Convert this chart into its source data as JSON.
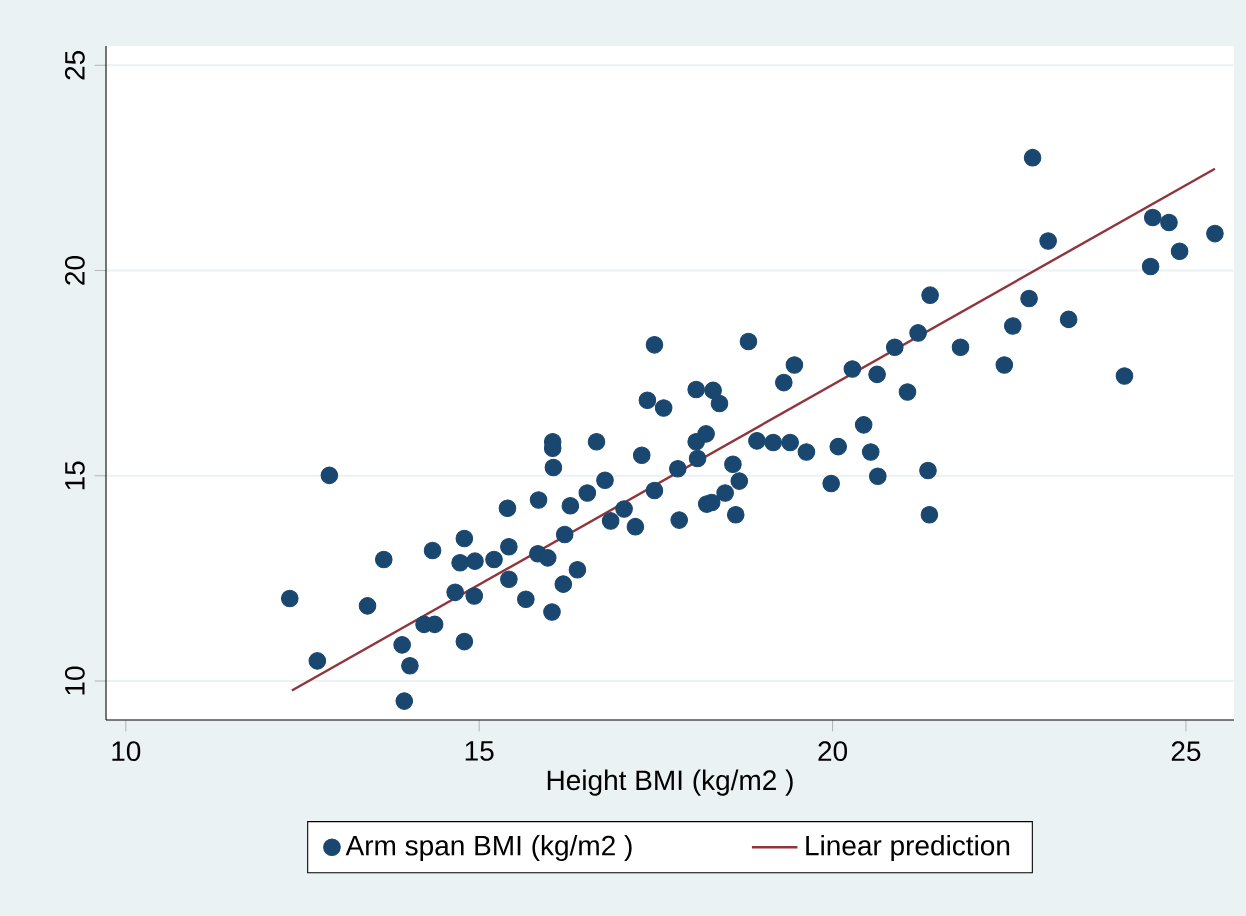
{
  "chart_data": {
    "type": "scatter",
    "xlabel": "Height BMI (kg/m2 )",
    "xlim": [
      9.72,
      25.68
    ],
    "ylim": [
      9.05,
      25.47
    ],
    "xticks": [
      10,
      15,
      20,
      25
    ],
    "yticks": [
      10,
      15,
      20,
      25
    ],
    "grid": "y",
    "legend": "bottom",
    "series": [
      {
        "name": "Arm span BMI (kg/m2 )",
        "marker": "circle",
        "color": "#1a476f",
        "x": [
          12.32,
          12.71,
          12.88,
          13.42,
          13.65,
          13.91,
          13.94,
          14.02,
          14.22,
          14.34,
          14.37,
          14.66,
          14.73,
          14.79,
          14.79,
          14.93,
          14.94,
          15.21,
          15.4,
          15.42,
          15.42,
          15.66,
          15.83,
          15.84,
          15.97,
          16.03,
          16.04,
          16.04,
          16.05,
          16.21,
          16.19,
          16.29,
          16.39,
          16.53,
          16.66,
          16.78,
          16.86,
          17.05,
          17.21,
          17.3,
          17.38,
          17.48,
          17.48,
          17.61,
          17.81,
          17.83,
          18.07,
          18.07,
          18.09,
          18.21,
          18.22,
          18.29,
          18.31,
          18.4,
          18.48,
          18.59,
          18.63,
          18.68,
          18.81,
          18.93,
          19.16,
          19.31,
          19.4,
          19.46,
          19.63,
          19.98,
          20.08,
          20.28,
          20.44,
          20.54,
          20.63,
          20.64,
          20.88,
          21.06,
          21.21,
          21.35,
          21.37,
          21.38,
          21.81,
          22.43,
          22.55,
          22.78,
          22.83,
          23.05,
          23.34,
          24.13,
          24.5,
          24.53,
          24.76,
          24.91,
          25.41
        ],
        "values": [
          12.01,
          10.49,
          15.01,
          11.83,
          12.96,
          10.88,
          9.51,
          10.37,
          11.38,
          13.18,
          11.38,
          12.16,
          12.88,
          13.47,
          10.96,
          12.07,
          12.92,
          12.96,
          14.21,
          13.27,
          12.48,
          11.99,
          13.1,
          14.41,
          13.0,
          11.68,
          15.83,
          15.67,
          15.2,
          13.57,
          12.36,
          14.27,
          12.71,
          14.58,
          15.83,
          14.89,
          13.9,
          14.19,
          13.76,
          15.5,
          16.84,
          14.64,
          18.19,
          16.65,
          15.17,
          13.92,
          15.83,
          17.1,
          15.42,
          16.02,
          14.31,
          14.35,
          17.08,
          16.76,
          14.58,
          15.28,
          14.05,
          14.87,
          18.27,
          15.85,
          15.81,
          17.27,
          15.81,
          17.7,
          15.58,
          14.81,
          15.71,
          17.6,
          16.24,
          15.58,
          17.47,
          14.99,
          18.13,
          17.04,
          18.48,
          15.13,
          14.05,
          19.4,
          18.13,
          17.7,
          18.65,
          19.32,
          22.75,
          20.72,
          18.81,
          17.43,
          20.1,
          21.29,
          21.17,
          20.47,
          20.9
        ]
      },
      {
        "name": "Linear prediction",
        "type": "line",
        "color": "#90353b",
        "marker": "none",
        "x": [
          12.35,
          25.41
        ],
        "values": [
          9.77,
          22.48
        ]
      }
    ]
  }
}
